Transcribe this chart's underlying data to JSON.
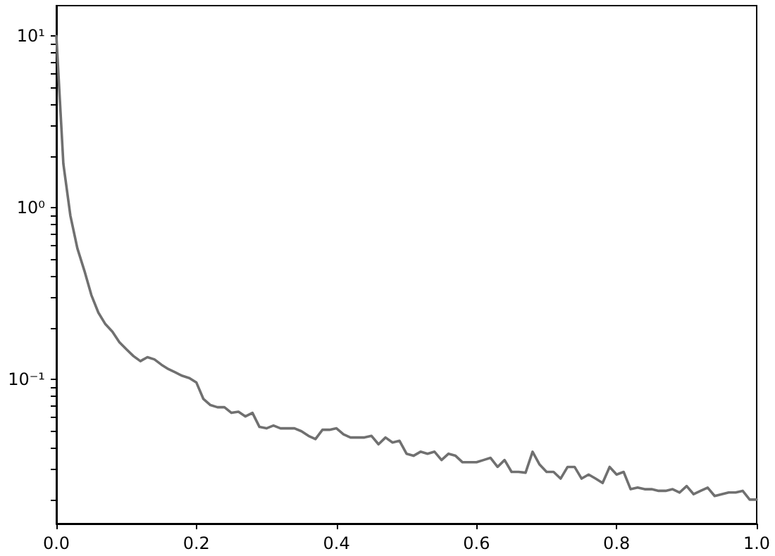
{
  "chart_data": {
    "type": "line",
    "xlim": [
      0,
      1
    ],
    "ylim": [
      0.0145,
      15
    ],
    "log": "y",
    "grid": false,
    "marker": "none",
    "line_style": "solid",
    "xticks": [
      {
        "value": 0,
        "label": "0.0"
      },
      {
        "value": 0.2,
        "label": "0.2"
      },
      {
        "value": 0.4,
        "label": "0.4"
      },
      {
        "value": 0.6,
        "label": "0.6"
      },
      {
        "value": 0.8,
        "label": "0.8"
      },
      {
        "value": 1,
        "label": "1.0"
      }
    ],
    "yticks": [
      {
        "value": 0.02,
        "label": null
      },
      {
        "value": 0.03,
        "label": null
      },
      {
        "value": 0.04,
        "label": null
      },
      {
        "value": 0.05,
        "label": null
      },
      {
        "value": 0.06,
        "label": null
      },
      {
        "value": 0.07,
        "label": null
      },
      {
        "value": 0.08,
        "label": null
      },
      {
        "value": 0.09,
        "label": null
      },
      {
        "value": 0.1,
        "label": "10⁻¹"
      },
      {
        "value": 0.2,
        "label": null
      },
      {
        "value": 0.3,
        "label": null
      },
      {
        "value": 0.4,
        "label": null
      },
      {
        "value": 0.5,
        "label": null
      },
      {
        "value": 0.6,
        "label": null
      },
      {
        "value": 0.7,
        "label": null
      },
      {
        "value": 0.8,
        "label": null
      },
      {
        "value": 0.9,
        "label": null
      },
      {
        "value": 1,
        "label": "10⁰"
      },
      {
        "value": 2,
        "label": null
      },
      {
        "value": 3,
        "label": null
      },
      {
        "value": 4,
        "label": null
      },
      {
        "value": 5,
        "label": null
      },
      {
        "value": 6,
        "label": null
      },
      {
        "value": 7,
        "label": null
      },
      {
        "value": 8,
        "label": null
      },
      {
        "value": 9,
        "label": null
      },
      {
        "value": 10,
        "label": "10¹"
      }
    ],
    "x": [
      0,
      0.01,
      0.02,
      0.03,
      0.04,
      0.05,
      0.06,
      0.07,
      0.08,
      0.09,
      0.1,
      0.11,
      0.12,
      0.13,
      0.14,
      0.15,
      0.16,
      0.17,
      0.18,
      0.19,
      0.2,
      0.21,
      0.22,
      0.23,
      0.24,
      0.25,
      0.26,
      0.27,
      0.28,
      0.29,
      0.3,
      0.31,
      0.32,
      0.33,
      0.34,
      0.35,
      0.36,
      0.37,
      0.38,
      0.39,
      0.4,
      0.41,
      0.42,
      0.43,
      0.44,
      0.45,
      0.46,
      0.47,
      0.48,
      0.49,
      0.5,
      0.51,
      0.52,
      0.53,
      0.54,
      0.55,
      0.56,
      0.57,
      0.58,
      0.59,
      0.6,
      0.61,
      0.62,
      0.63,
      0.64,
      0.65,
      0.66,
      0.67,
      0.68,
      0.69,
      0.7,
      0.71,
      0.72,
      0.73,
      0.74,
      0.75,
      0.76,
      0.77,
      0.78,
      0.79,
      0.8,
      0.81,
      0.82,
      0.83,
      0.84,
      0.85,
      0.86,
      0.87,
      0.88,
      0.89,
      0.9,
      0.91,
      0.92,
      0.93,
      0.94,
      0.95,
      0.96,
      0.97,
      0.98,
      0.99,
      1
    ],
    "series": [
      {
        "color": "#707070",
        "values": [
          10,
          1.8,
          0.9,
          0.58,
          0.43,
          0.31,
          0.245,
          0.21,
          0.19,
          0.165,
          0.15,
          0.137,
          0.128,
          0.135,
          0.131,
          0.122,
          0.115,
          0.11,
          0.105,
          0.102,
          0.096,
          0.077,
          0.071,
          0.069,
          0.069,
          0.064,
          0.065,
          0.061,
          0.064,
          0.053,
          0.052,
          0.054,
          0.052,
          0.052,
          0.052,
          0.05,
          0.047,
          0.045,
          0.051,
          0.051,
          0.052,
          0.048,
          0.046,
          0.046,
          0.046,
          0.047,
          0.042,
          0.046,
          0.043,
          0.044,
          0.037,
          0.036,
          0.038,
          0.037,
          0.038,
          0.034,
          0.037,
          0.036,
          0.033,
          0.033,
          0.033,
          0.034,
          0.035,
          0.031,
          0.034,
          0.029,
          0.029,
          0.0287,
          0.038,
          0.032,
          0.029,
          0.029,
          0.0265,
          0.031,
          0.031,
          0.0265,
          0.028,
          0.0265,
          0.025,
          0.031,
          0.028,
          0.029,
          0.023,
          0.0235,
          0.023,
          0.023,
          0.0225,
          0.0225,
          0.023,
          0.022,
          0.024,
          0.0215,
          0.0225,
          0.0235,
          0.021,
          0.0215,
          0.022,
          0.022,
          0.0225,
          0.02,
          0.02
        ]
      }
    ]
  }
}
